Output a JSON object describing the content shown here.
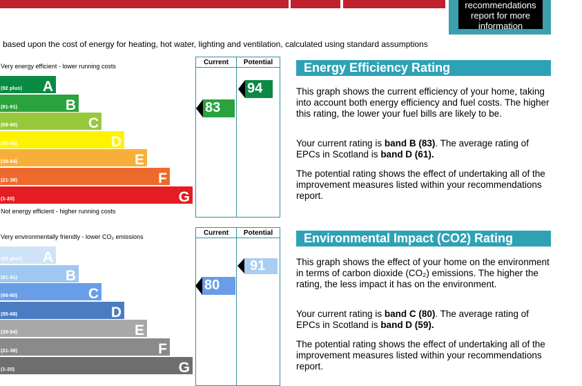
{
  "top": {
    "recommendations_line1": "recommendations",
    "recommendations_line2": "report for more",
    "recommendations_line3": "information"
  },
  "intro_text": "based upon the cost of energy for heating, hot water, lighting and ventilation, calculated using standard assumptions",
  "energy": {
    "top_label": "Very energy efficient - lower running costs",
    "bottom_label": "Not energy efficient - higher running costs",
    "col_current": "Current",
    "col_potential": "Potential",
    "current_value": "83",
    "potential_value": "94",
    "current_color": "#2aa33f",
    "potential_color": "#0b8a43",
    "bands": [
      {
        "range": "(92 plus)",
        "letter": "A",
        "color": "#0b8a43"
      },
      {
        "range": "(81-91)",
        "letter": "B",
        "color": "#2aa33f"
      },
      {
        "range": "(69-80)",
        "letter": "C",
        "color": "#98c93c"
      },
      {
        "range": "(55-68)",
        "letter": "D",
        "color": "#fff200"
      },
      {
        "range": "(39-54)",
        "letter": "E",
        "color": "#f6b03a"
      },
      {
        "range": "(21-38)",
        "letter": "F",
        "color": "#ee6a2c"
      },
      {
        "range": "(1-20)",
        "letter": "G",
        "color": "#e31d23"
      }
    ],
    "heading": "Energy Efficiency Rating",
    "para1": "This graph shows the current efficiency of your home, taking into account both energy efficiency and fuel costs. The higher this rating, the lower your fuel bills are likely to be.",
    "para2_pre": "Your current rating is ",
    "para2_band": "band B (83)",
    "para2_mid": ". The average rating of EPCs in Scotland is ",
    "para2_avg": "band D (61).",
    "para3": "The potential rating shows the effect of undertaking all of the improvement measures listed within your recommendations report."
  },
  "environment": {
    "top_label": "Very environmentally friendly - lower CO₂ emissions",
    "col_current": "Current",
    "col_potential": "Potential",
    "current_value": "80",
    "potential_value": "91",
    "current_color": "#6a9de8",
    "potential_color": "#a9cdf2",
    "bands": [
      {
        "range": "(92 plus)",
        "letter": "A",
        "color": "#cfe3f8"
      },
      {
        "range": "(81-91)",
        "letter": "B",
        "color": "#9ec8f0"
      },
      {
        "range": "(69-80)",
        "letter": "C",
        "color": "#6a9de8"
      },
      {
        "range": "(55-68)",
        "letter": "D",
        "color": "#4a7cc4"
      },
      {
        "range": "(39-54)",
        "letter": "E",
        "color": "#a8a8a8"
      },
      {
        "range": "(21-38)",
        "letter": "F",
        "color": "#8a8a8a"
      },
      {
        "range": "(1-20)",
        "letter": "G",
        "color": "#6e6e6e"
      }
    ],
    "heading": "Environmental Impact (CO2) Rating",
    "para1": "This graph shows the effect of your home on the environment in terms of carbon dioxide (CO₂) emissions. The higher the rating, the less impact it has on the environment.",
    "para2_pre": "Your current rating is ",
    "para2_band": "band C (80)",
    "para2_mid": ". The average rating of EPCs in Scotland is ",
    "para2_avg": "band D (59).",
    "para3": "The potential rating shows the effect of undertaking all of the improvement measures listed within your recommendations report."
  }
}
